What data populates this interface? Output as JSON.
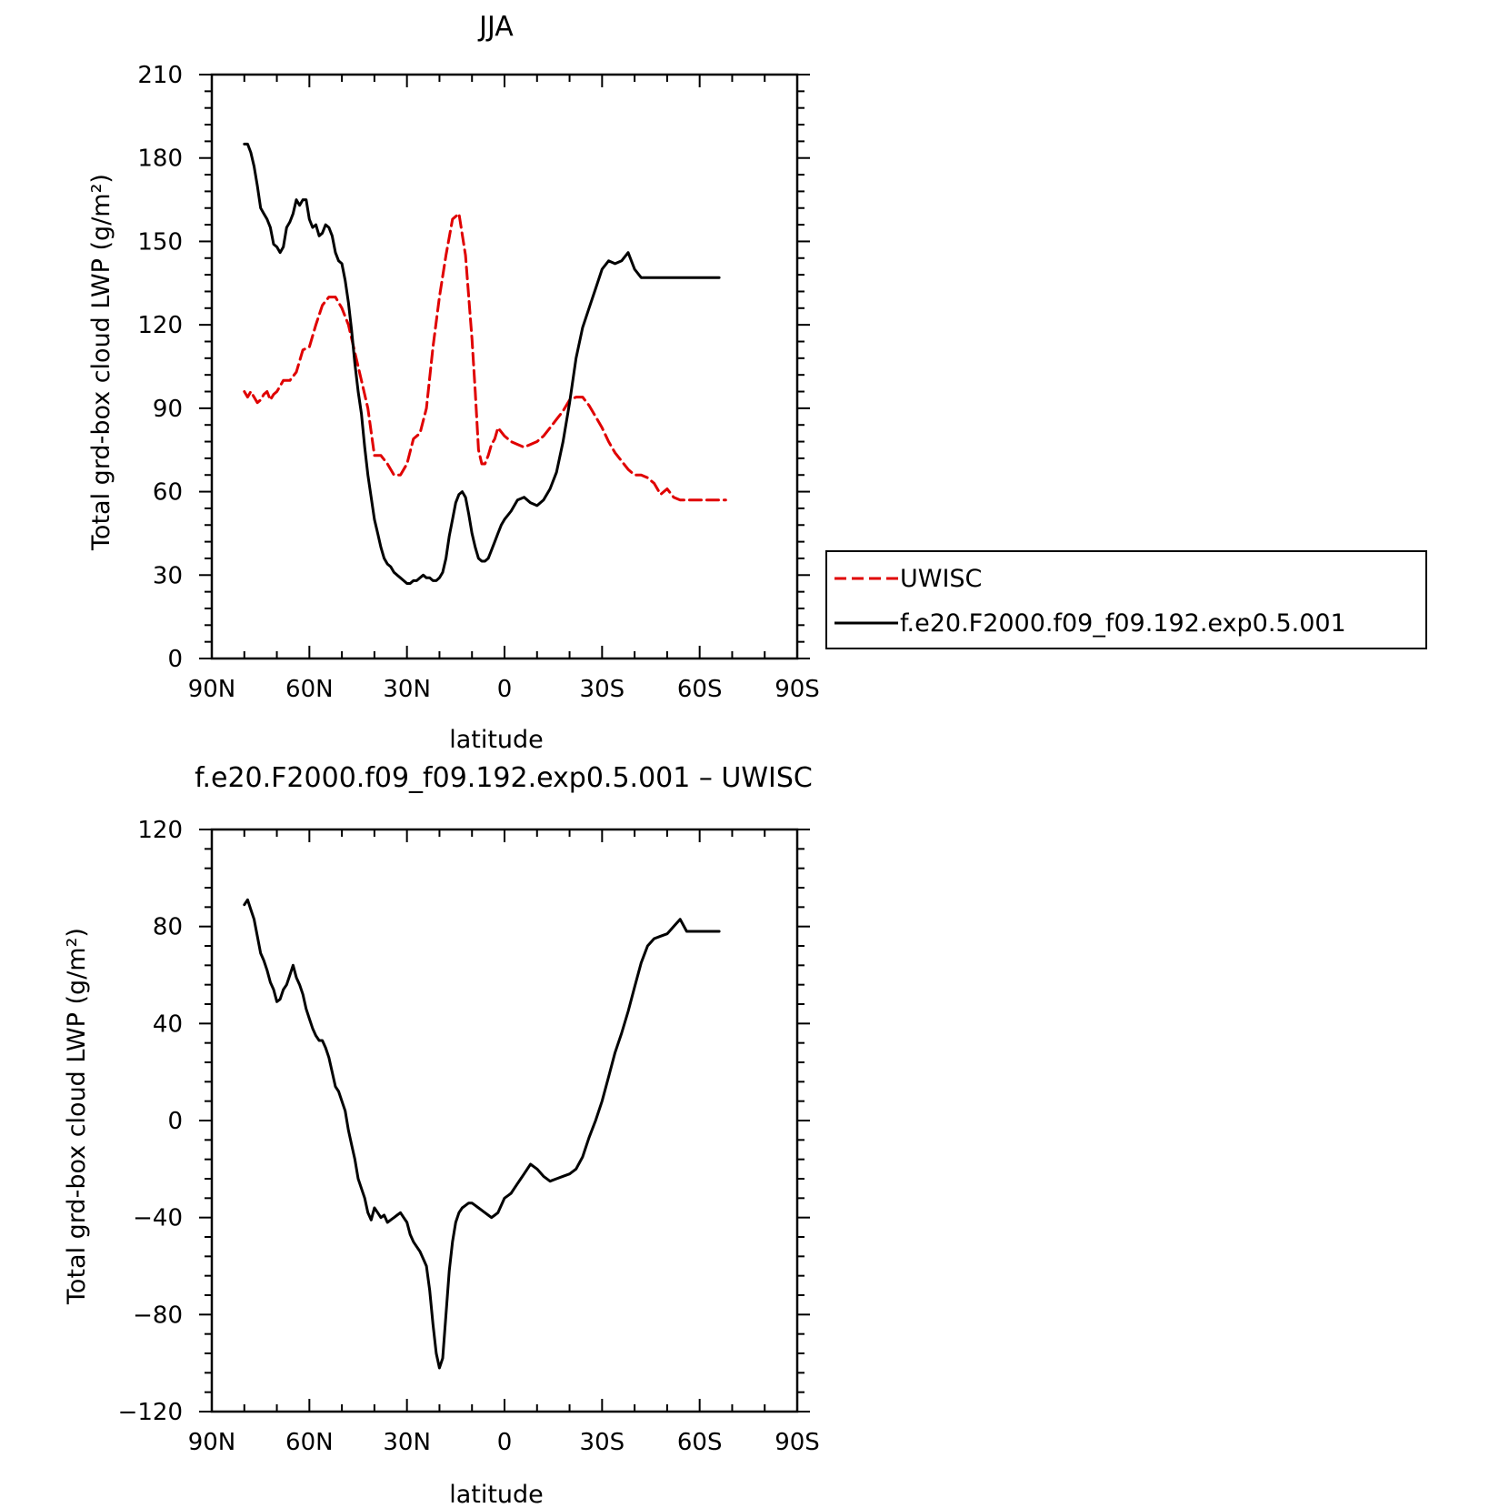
{
  "chart_data": [
    {
      "type": "line",
      "title": "JJA",
      "xlabel": "latitude",
      "ylabel": "Total grd-box cloud LWP (g/m²)",
      "xlim": [
        90,
        -90
      ],
      "ylim": [
        0,
        210
      ],
      "x_ticks": [
        90,
        60,
        30,
        0,
        -30,
        -60,
        -90
      ],
      "x_tick_labels": [
        "90N",
        "60N",
        "30N",
        "0",
        "30S",
        "60S",
        "90S"
      ],
      "y_ticks": [
        0,
        30,
        60,
        90,
        120,
        150,
        180,
        210
      ],
      "y_tick_labels": [
        "0",
        "30",
        "60",
        "90",
        "120",
        "150",
        "180",
        "210"
      ],
      "grid": false,
      "legend": "outside-right",
      "series": [
        {
          "name": "UWISC",
          "color": "#e00000",
          "dash": "dashed",
          "x": [
            80,
            79,
            78,
            77,
            76,
            75,
            74,
            73,
            72,
            71,
            70,
            68,
            66,
            64,
            62,
            60,
            58,
            56,
            54,
            52,
            50,
            48,
            46,
            44,
            42,
            40,
            38,
            36,
            34,
            32,
            30,
            28,
            26,
            24,
            22,
            20,
            18,
            16,
            14,
            12,
            10,
            9,
            8,
            7,
            6,
            5,
            4,
            3,
            2,
            0,
            -2,
            -4,
            -6,
            -8,
            -10,
            -12,
            -14,
            -16,
            -18,
            -20,
            -22,
            -24,
            -26,
            -28,
            -30,
            -32,
            -34,
            -36,
            -38,
            -40,
            -42,
            -44,
            -46,
            -48,
            -50,
            -52,
            -54,
            -56,
            -58,
            -60,
            -62,
            -64,
            -66,
            -67,
            -68
          ],
          "y": [
            96,
            94,
            96,
            94,
            92,
            93,
            95,
            96,
            93,
            95,
            96,
            100,
            100,
            103,
            111,
            112,
            120,
            127,
            130,
            130,
            126,
            120,
            110,
            100,
            90,
            73,
            73,
            70,
            66,
            66,
            70,
            79,
            81,
            90,
            112,
            130,
            145,
            158,
            160,
            145,
            115,
            96,
            75,
            70,
            70,
            73,
            77,
            79,
            83,
            80,
            78,
            77,
            76,
            77,
            78,
            80,
            83,
            86,
            89,
            93,
            94,
            94,
            91,
            87,
            83,
            78,
            74,
            71,
            68,
            66,
            66,
            65,
            63,
            59,
            61,
            58,
            57,
            57,
            57,
            57,
            57,
            57,
            57,
            57,
            57
          ],
          "note_y_adjusted": false
        },
        {
          "name": "f.e20.F2000.f09_f09.192.exp0.5.001",
          "color": "#000000",
          "dash": "solid",
          "x": [
            80,
            79,
            78,
            77,
            76,
            75,
            74,
            73,
            72,
            71,
            70,
            69,
            68,
            67,
            66,
            65,
            64,
            63,
            62,
            61,
            60,
            59,
            58,
            57,
            56,
            55,
            54,
            53,
            52,
            51,
            50,
            49,
            48,
            47,
            46,
            45,
            44,
            43,
            42,
            41,
            40,
            39,
            38,
            37,
            36,
            35,
            34,
            33,
            32,
            31,
            30,
            29,
            28,
            27,
            26,
            25,
            24,
            23,
            22,
            21,
            20,
            19,
            18,
            17,
            16,
            15,
            14,
            13,
            12,
            11,
            10,
            9,
            8,
            7,
            6,
            5,
            4,
            3,
            2,
            1,
            0,
            -2,
            -4,
            -6,
            -8,
            -10,
            -12,
            -14,
            -16,
            -18,
            -20,
            -22,
            -24,
            -26,
            -28,
            -30,
            -32,
            -34,
            -36,
            -38,
            -40,
            -42,
            -44,
            -46,
            -48,
            -50,
            -52,
            -54,
            -56,
            -58,
            -60,
            -62,
            -64,
            -65,
            -66
          ],
          "y": [
            185,
            185,
            182,
            177,
            170,
            162,
            160,
            158,
            155,
            149,
            148,
            146,
            148,
            155,
            157,
            160,
            165,
            163,
            165,
            165,
            158,
            155,
            156,
            152,
            153,
            156,
            155,
            152,
            146,
            143,
            142,
            136,
            128,
            118,
            106,
            96,
            88,
            76,
            66,
            58,
            50,
            45,
            40,
            36,
            34,
            33,
            31,
            30,
            29,
            28,
            27,
            27,
            28,
            28,
            29,
            30,
            29,
            29,
            28,
            28,
            29,
            31,
            36,
            44,
            50,
            56,
            59,
            60,
            58,
            52,
            45,
            40,
            36,
            35,
            35,
            36,
            39,
            42,
            45,
            48,
            50,
            53,
            57,
            58,
            56,
            55,
            57,
            61,
            67,
            78,
            92,
            108,
            119,
            126,
            133,
            140,
            143,
            142,
            143,
            146,
            140,
            137,
            137,
            137,
            137,
            137,
            137,
            137,
            137,
            137,
            137,
            137,
            137,
            137,
            137
          ]
        }
      ]
    },
    {
      "type": "line",
      "title": "f.e20.F2000.f09_f09.192.exp0.5.001 – UWISC",
      "xlabel": "latitude",
      "ylabel": "Total grd-box cloud LWP (g/m²)",
      "xlim": [
        90,
        -90
      ],
      "ylim": [
        -120,
        120
      ],
      "x_ticks": [
        90,
        60,
        30,
        0,
        -30,
        -60,
        -90
      ],
      "x_tick_labels": [
        "90N",
        "60N",
        "30N",
        "0",
        "30S",
        "60S",
        "90S"
      ],
      "y_ticks": [
        -120,
        -80,
        -40,
        0,
        40,
        80,
        120
      ],
      "y_tick_labels": [
        "−120",
        "−80",
        "−40",
        "0",
        "40",
        "80",
        "120"
      ],
      "grid": false,
      "series": [
        {
          "color": "#000000",
          "dash": "solid",
          "x": [
            80,
            79,
            78,
            77,
            76,
            75,
            74,
            73,
            72,
            71,
            70,
            69,
            68,
            67,
            66,
            65,
            64,
            63,
            62,
            61,
            60,
            59,
            58,
            57,
            56,
            55,
            54,
            53,
            52,
            51,
            50,
            49,
            48,
            47,
            46,
            45,
            44,
            43,
            42,
            41,
            40,
            39,
            38,
            37,
            36,
            35,
            34,
            33,
            32,
            31,
            30,
            29,
            28,
            27,
            26,
            25,
            24,
            23,
            22,
            21,
            20,
            19,
            18,
            17,
            16,
            15,
            14,
            13,
            12,
            11,
            10,
            9,
            8,
            7,
            6,
            5,
            4,
            3,
            2,
            1,
            0,
            -1,
            -2,
            -3,
            -4,
            -5,
            -6,
            -8,
            -10,
            -12,
            -14,
            -16,
            -18,
            -20,
            -22,
            -24,
            -26,
            -28,
            -30,
            -32,
            -34,
            -36,
            -38,
            -40,
            -42,
            -44,
            -46,
            -48,
            -50,
            -52,
            -54,
            -56,
            -58,
            -60,
            -62,
            -64,
            -65,
            -66
          ],
          "y": [
            89,
            91,
            87,
            83,
            76,
            69,
            66,
            62,
            57,
            54,
            49,
            50,
            54,
            56,
            60,
            64,
            59,
            56,
            52,
            46,
            42,
            38,
            35,
            33,
            33,
            30,
            26,
            20,
            14,
            12,
            8,
            4,
            -4,
            -10,
            -16,
            -24,
            -28,
            -32,
            -38,
            -41,
            -36,
            -38,
            -40,
            -39,
            -42,
            -41,
            -40,
            -39,
            -38,
            -40,
            -42,
            -47,
            -50,
            -52,
            -54,
            -57,
            -60,
            -70,
            -84,
            -96,
            -102,
            -98,
            -80,
            -62,
            -50,
            -42,
            -38,
            -36,
            -35,
            -34,
            -34,
            -35,
            -36,
            -37,
            -38,
            -39,
            -40,
            -39,
            -38,
            -35,
            -32,
            -31,
            -30,
            -28,
            -26,
            -24,
            -22,
            -18,
            -20,
            -23,
            -25,
            -24,
            -23,
            -22,
            -20,
            -15,
            -7,
            0,
            8,
            18,
            28,
            36,
            45,
            55,
            65,
            72,
            75,
            76,
            77,
            80,
            83,
            78,
            78,
            78,
            78,
            78,
            78,
            78
          ],
          "note": "difference series"
        }
      ]
    }
  ]
}
